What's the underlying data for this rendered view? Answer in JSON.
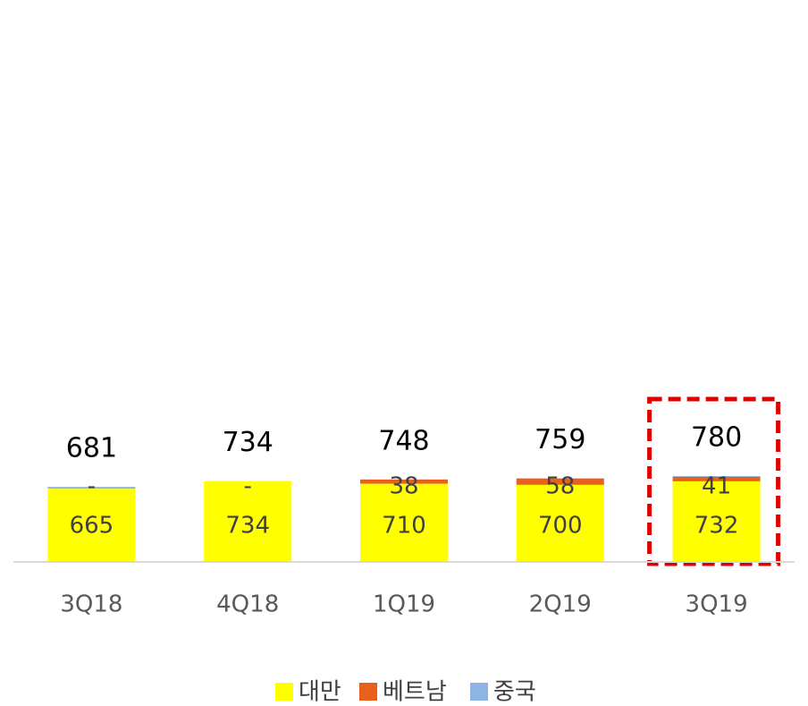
{
  "chart_data": {
    "type": "stacked_bar",
    "categories": [
      "3Q18",
      "4Q18",
      "1Q19",
      "2Q19",
      "3Q19"
    ],
    "series": [
      {
        "name": "대만",
        "color": "#ffff00",
        "values": [
          665,
          734,
          710,
          700,
          732
        ]
      },
      {
        "name": "베트남",
        "color": "#e8601c",
        "values": [
          0,
          0,
          38,
          58,
          41
        ],
        "value_labels": [
          "-",
          "-",
          "38",
          "58",
          "41"
        ]
      },
      {
        "name": "중국",
        "color": "#8db4e2",
        "values": [
          16,
          0,
          0,
          0,
          7
        ]
      }
    ],
    "totals": [
      681,
      734,
      748,
      759,
      780
    ],
    "ylim": [
      0,
      5100
    ]
  }
}
